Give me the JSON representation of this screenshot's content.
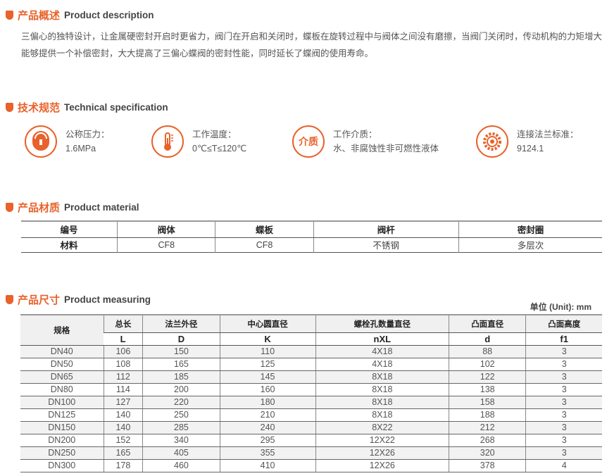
{
  "colors": {
    "accent": "#e8622a"
  },
  "description": {
    "title_cn": "产品概述",
    "title_en": "Product description",
    "text": "三偏心的独特设计，让金属硬密封开启时更省力，阀门在开启和关闭时，蝶板在旋转过程中与阀体之间没有磨擦，当阀门关闭时，传动机构的力矩增大能够提供一个补偿密封，大大提高了三偏心蝶阀的密封性能，同时延长了蝶阀的使用寿命。"
  },
  "technical": {
    "title_cn": "技术规范",
    "title_en": "Technical specification",
    "items": [
      {
        "icon": "pressure-gauge-icon",
        "label": "公称压力：",
        "value": "1.6MPa"
      },
      {
        "icon": "thermometer-icon",
        "label": "工作温度：",
        "value": "0℃≤T≤120℃"
      },
      {
        "icon": "medium-icon",
        "icon_text": "介质",
        "label": "工作介质：",
        "value": "水、非腐蚀性非可燃性液体"
      },
      {
        "icon": "flange-gear-icon",
        "label": "连接法兰标准：",
        "value": "9124.1"
      }
    ]
  },
  "material": {
    "title_cn": "产品材质",
    "title_en": "Product material",
    "headers": [
      "编号",
      "阀体",
      "蝶板",
      "阀杆",
      "密封圈"
    ],
    "row": [
      "材料",
      "CF8",
      "CF8",
      "不锈钢",
      "多层次"
    ]
  },
  "measuring": {
    "title_cn": "产品尺寸",
    "title_en": "Product measuring",
    "unit": "单位 (Unit): mm",
    "spec_header": "规格",
    "headers": [
      "总长",
      "法兰外径",
      "中心圆直径",
      "螺栓孔数量直径",
      "凸面直径",
      "凸面高度"
    ],
    "symbols": [
      "L",
      "D",
      "K",
      "nXL",
      "d",
      "f1"
    ],
    "rows": [
      [
        "DN40",
        "106",
        "150",
        "110",
        "4X18",
        "88",
        "3"
      ],
      [
        "DN50",
        "108",
        "165",
        "125",
        "4X18",
        "102",
        "3"
      ],
      [
        "DN65",
        "112",
        "185",
        "145",
        "8X18",
        "122",
        "3"
      ],
      [
        "DN80",
        "114",
        "200",
        "160",
        "8X18",
        "138",
        "3"
      ],
      [
        "DN100",
        "127",
        "220",
        "180",
        "8X18",
        "158",
        "3"
      ],
      [
        "DN125",
        "140",
        "250",
        "210",
        "8X18",
        "188",
        "3"
      ],
      [
        "DN150",
        "140",
        "285",
        "240",
        "8X22",
        "212",
        "3"
      ],
      [
        "DN200",
        "152",
        "340",
        "295",
        "12X22",
        "268",
        "3"
      ],
      [
        "DN250",
        "165",
        "405",
        "355",
        "12X26",
        "320",
        "3"
      ],
      [
        "DN300",
        "178",
        "460",
        "410",
        "12X26",
        "378",
        "4"
      ]
    ]
  }
}
